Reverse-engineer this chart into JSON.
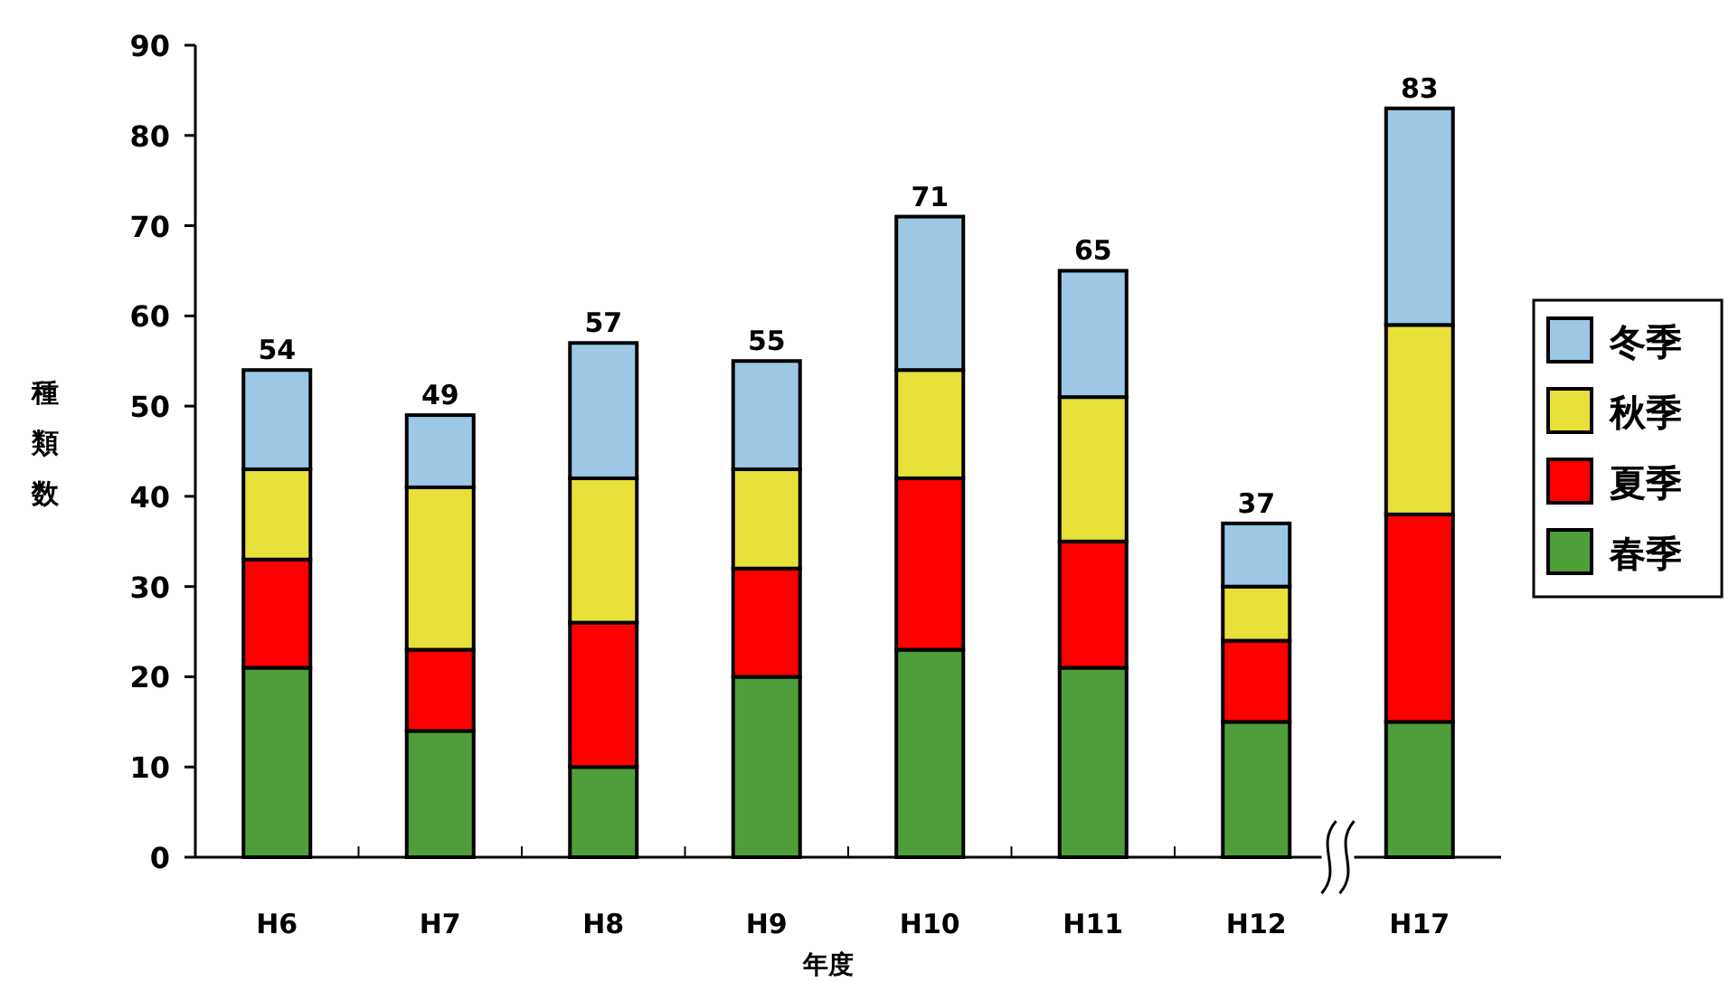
{
  "chart_data": {
    "type": "bar",
    "stacked": true,
    "xlabel": "年度",
    "ylabel": "種類数",
    "categories": [
      "H6",
      "H7",
      "H8",
      "H9",
      "H10",
      "H11",
      "H12",
      "H17"
    ],
    "series": [
      {
        "name": "春季",
        "color": "#4e9e3a",
        "values": [
          21,
          14,
          10,
          20,
          23,
          21,
          15,
          15
        ]
      },
      {
        "name": "夏季",
        "color": "#ff0000",
        "values": [
          12,
          9,
          16,
          12,
          19,
          14,
          9,
          23
        ]
      },
      {
        "name": "秋季",
        "color": "#e8e03a",
        "values": [
          10,
          18,
          16,
          11,
          12,
          16,
          6,
          21
        ]
      },
      {
        "name": "冬季",
        "color": "#9cc8e6",
        "values": [
          11,
          8,
          15,
          12,
          17,
          14,
          7,
          24
        ]
      }
    ],
    "totals": [
      "54",
      "49",
      "57",
      "55",
      "71",
      "65",
      "37",
      "83"
    ],
    "ylim": [
      0,
      90
    ],
    "yticks": [
      0,
      10,
      20,
      30,
      40,
      50,
      60,
      70,
      80,
      90
    ],
    "grid": false,
    "legend": "right"
  }
}
